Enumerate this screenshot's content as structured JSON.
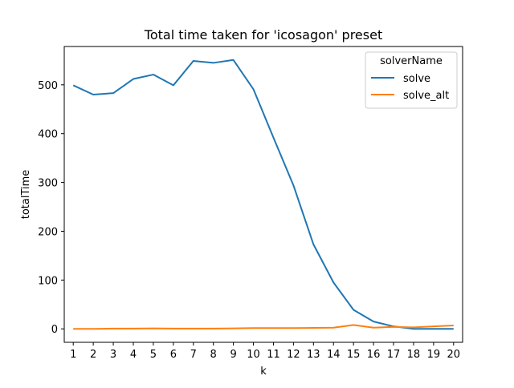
{
  "chart_data": {
    "type": "line",
    "title": "Total time taken for 'icosagon' preset",
    "xlabel": "k",
    "ylabel": "totalTime",
    "x": [
      1,
      2,
      3,
      4,
      5,
      6,
      7,
      8,
      9,
      10,
      11,
      12,
      13,
      14,
      15,
      16,
      17,
      18,
      19,
      20
    ],
    "xlim": [
      0.55,
      20.45
    ],
    "ylim": [
      -27.55,
      578.55
    ],
    "yticks": [
      0,
      100,
      200,
      300,
      400,
      500
    ],
    "grid": false,
    "legend": {
      "title": "solverName",
      "placement": "top-right"
    },
    "series": [
      {
        "name": "solve",
        "color": "#1f77b4",
        "values": [
          499,
          480,
          483,
          512,
          521,
          499,
          549,
          545,
          551,
          491,
          392,
          294,
          173,
          95,
          39,
          15,
          5,
          0,
          0,
          0
        ]
      },
      {
        "name": "solve_alt",
        "color": "#ff7f0e",
        "values": [
          0,
          0,
          0.5,
          0.5,
          1,
          0.5,
          0.5,
          0.5,
          1,
          1.5,
          1.5,
          1.5,
          2,
          2.5,
          8,
          2.5,
          4,
          3,
          5,
          7
        ]
      }
    ]
  }
}
